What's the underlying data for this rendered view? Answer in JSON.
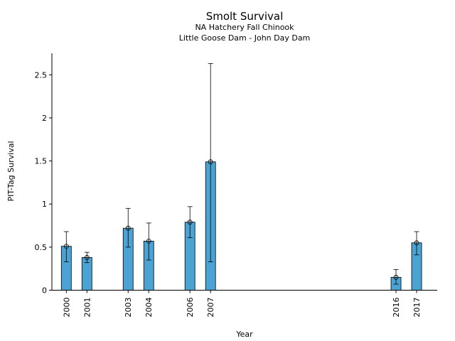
{
  "chart_data": {
    "type": "bar",
    "title": "Smolt Survival",
    "subtitle_lines": [
      "NA Hatchery Fall Chinook",
      "Little Goose Dam - John Day Dam"
    ],
    "xlabel": "Year",
    "ylabel": "PIT-Tag Survival",
    "ylim": [
      0,
      2.75
    ],
    "xlim": [
      1999.3,
      2018
    ],
    "yticks": [
      {
        "value": 0,
        "label": "0"
      },
      {
        "value": 0.5,
        "label": "0.5"
      },
      {
        "value": 1,
        "label": "1"
      },
      {
        "value": 1.5,
        "label": "1.5"
      },
      {
        "value": 2,
        "label": "2"
      },
      {
        "value": 2.5,
        "label": "2.5"
      }
    ],
    "grid": false,
    "bar_color": "#4ba3d3",
    "bars": [
      {
        "year": 2000,
        "label": "2000",
        "value": 0.51,
        "ci_low": 0.33,
        "ci_high": 0.68
      },
      {
        "year": 2001,
        "label": "2001",
        "value": 0.38,
        "ci_low": 0.32,
        "ci_high": 0.44
      },
      {
        "year": 2003,
        "label": "2003",
        "value": 0.72,
        "ci_low": 0.5,
        "ci_high": 0.95
      },
      {
        "year": 2004,
        "label": "2004",
        "value": 0.57,
        "ci_low": 0.35,
        "ci_high": 0.78
      },
      {
        "year": 2006,
        "label": "2006",
        "value": 0.79,
        "ci_low": 0.61,
        "ci_high": 0.97
      },
      {
        "year": 2007,
        "label": "2007",
        "value": 1.49,
        "ci_low": 0.33,
        "ci_high": 2.63
      },
      {
        "year": 2016,
        "label": "2016",
        "value": 0.15,
        "ci_low": 0.07,
        "ci_high": 0.24
      },
      {
        "year": 2017,
        "label": "2017",
        "value": 0.55,
        "ci_low": 0.41,
        "ci_high": 0.68
      }
    ]
  }
}
